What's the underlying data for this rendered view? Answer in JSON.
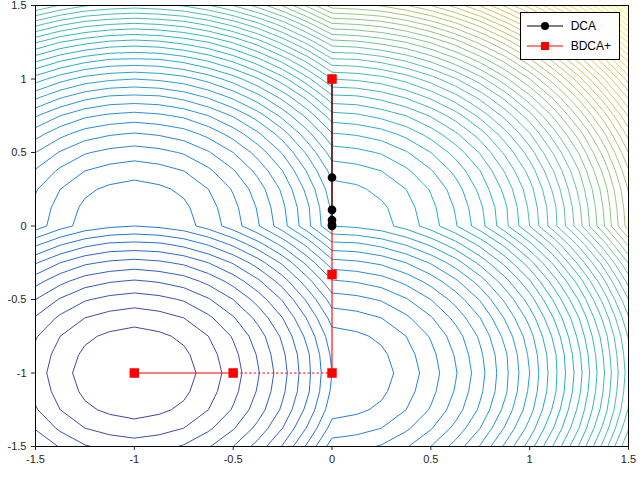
{
  "chart_data": {
    "type": "contour",
    "x": [
      -1.5,
      -1.375,
      -1.25,
      -1.125,
      -1,
      -0.875,
      -0.75,
      -0.625,
      -0.5,
      -0.375,
      -0.25,
      -0.125,
      0,
      0.125,
      0.25,
      0.375,
      0.5,
      0.625,
      0.75,
      0.875,
      1,
      1.125,
      1.25,
      1.375,
      1.5
    ],
    "y": [
      -1.5,
      -1.375,
      -1.25,
      -1.125,
      -1,
      -0.875,
      -0.75,
      -0.625,
      -0.5,
      -0.375,
      -0.25,
      -0.125,
      0,
      0.125,
      0.25,
      0.375,
      0.5,
      0.625,
      0.75,
      0.875,
      1,
      1.125,
      1.25,
      1.375,
      1.5
    ],
    "z": [
      [
        -1.5,
        -1.61,
        -1.69,
        -1.73,
        -1.75,
        -1.73,
        -1.69,
        -1.61,
        -1.5,
        -1.36,
        -1.19,
        -0.98,
        -0.75,
        -0.73,
        -0.69,
        -0.61,
        -0.5,
        -0.36,
        -0.19,
        0.02,
        0.25,
        0.52,
        0.81,
        1.14,
        1.5
      ],
      [
        -1.61,
        -1.72,
        -1.8,
        -1.84,
        -1.86,
        -1.84,
        -1.8,
        -1.72,
        -1.61,
        -1.47,
        -1.3,
        -1.09,
        -0.86,
        -0.84,
        -0.8,
        -0.72,
        -0.61,
        -0.47,
        -0.3,
        -0.09,
        0.14,
        0.41,
        0.7,
        1.03,
        1.39
      ],
      [
        -1.69,
        -1.8,
        -1.88,
        -1.92,
        -1.94,
        -1.92,
        -1.88,
        -1.8,
        -1.69,
        -1.55,
        -1.38,
        -1.17,
        -0.94,
        -0.92,
        -0.88,
        -0.8,
        -0.69,
        -0.55,
        -0.38,
        -0.17,
        0.06,
        0.33,
        0.63,
        0.95,
        1.31
      ],
      [
        -1.73,
        -1.84,
        -1.92,
        -1.97,
        -1.98,
        -1.97,
        -1.92,
        -1.84,
        -1.73,
        -1.59,
        -1.42,
        -1.22,
        -0.98,
        -0.97,
        -0.92,
        -0.84,
        -0.73,
        -0.59,
        -0.42,
        -0.22,
        0.02,
        0.28,
        0.58,
        0.91,
        1.27
      ],
      [
        -1.75,
        -1.86,
        -1.94,
        -1.98,
        -2,
        -1.98,
        -1.94,
        -1.86,
        -1.75,
        -1.61,
        -1.44,
        -1.23,
        -1,
        -0.98,
        -0.94,
        -0.86,
        -0.75,
        -0.61,
        -0.44,
        -0.23,
        0,
        0.27,
        0.56,
        0.89,
        1.25
      ],
      [
        -1.73,
        -1.84,
        -1.92,
        -1.97,
        -1.98,
        -1.97,
        -1.92,
        -1.84,
        -1.73,
        -1.59,
        -1.42,
        -1.22,
        -0.98,
        -0.97,
        -0.92,
        -0.84,
        -0.73,
        -0.59,
        -0.42,
        -0.22,
        0.02,
        0.28,
        0.58,
        0.91,
        1.27
      ],
      [
        -1.69,
        -1.8,
        -1.88,
        -1.92,
        -1.94,
        -1.92,
        -1.88,
        -1.8,
        -1.69,
        -1.55,
        -1.38,
        -1.17,
        -0.94,
        -0.92,
        -0.88,
        -0.8,
        -0.69,
        -0.55,
        -0.38,
        -0.17,
        0.06,
        0.33,
        0.63,
        0.95,
        1.31
      ],
      [
        -1.61,
        -1.72,
        -1.8,
        -1.84,
        -1.86,
        -1.84,
        -1.8,
        -1.72,
        -1.61,
        -1.47,
        -1.3,
        -1.09,
        -0.86,
        -0.84,
        -0.8,
        -0.72,
        -0.61,
        -0.47,
        -0.3,
        -0.09,
        0.14,
        0.41,
        0.7,
        1.03,
        1.39
      ],
      [
        -1.5,
        -1.61,
        -1.69,
        -1.73,
        -1.75,
        -1.73,
        -1.69,
        -1.61,
        -1.5,
        -1.36,
        -1.19,
        -0.98,
        -0.75,
        -0.73,
        -0.69,
        -0.61,
        -0.5,
        -0.36,
        -0.19,
        0.02,
        0.25,
        0.52,
        0.81,
        1.14,
        1.5
      ],
      [
        -1.36,
        -1.47,
        -1.55,
        -1.59,
        -1.61,
        -1.59,
        -1.55,
        -1.47,
        -1.36,
        -1.22,
        -1.05,
        -0.84,
        -0.61,
        -0.59,
        -0.55,
        -0.47,
        -0.36,
        -0.22,
        -0.05,
        0.16,
        0.39,
        0.66,
        0.95,
        1.28,
        1.64
      ],
      [
        -1.19,
        -1.3,
        -1.38,
        -1.42,
        -1.44,
        -1.42,
        -1.38,
        -1.3,
        -1.19,
        -1.05,
        -0.88,
        -0.67,
        -0.44,
        -0.42,
        -0.38,
        -0.3,
        -0.19,
        -0.05,
        0.13,
        0.33,
        0.56,
        0.83,
        1.13,
        1.45,
        1.81
      ],
      [
        -0.98,
        -1.09,
        -1.17,
        -1.22,
        -1.23,
        -1.22,
        -1.17,
        -1.09,
        -0.98,
        -0.84,
        -0.67,
        -0.47,
        -0.23,
        -0.22,
        -0.17,
        -0.09,
        0.02,
        0.16,
        0.33,
        0.53,
        0.77,
        1.03,
        1.33,
        1.66,
        2.02
      ],
      [
        -0.75,
        -0.86,
        -0.94,
        -0.98,
        -1,
        -0.98,
        -0.94,
        -0.86,
        -0.75,
        -0.61,
        -0.44,
        -0.23,
        0,
        0.02,
        0.06,
        0.14,
        0.25,
        0.39,
        0.56,
        0.77,
        1,
        1.27,
        1.56,
        1.89,
        2.25
      ],
      [
        -0.73,
        -0.84,
        -0.92,
        -0.97,
        -0.98,
        -0.97,
        -0.92,
        -0.84,
        -0.73,
        -0.59,
        -0.42,
        -0.22,
        0.02,
        0.03,
        0.08,
        0.16,
        0.27,
        0.41,
        0.58,
        0.78,
        1.02,
        1.28,
        1.58,
        1.91,
        2.27
      ],
      [
        -0.69,
        -0.8,
        -0.88,
        -0.92,
        -0.94,
        -0.92,
        -0.88,
        -0.8,
        -0.69,
        -0.55,
        -0.38,
        -0.17,
        0.06,
        0.08,
        0.13,
        0.2,
        0.31,
        0.45,
        0.63,
        0.83,
        1.06,
        1.33,
        1.63,
        1.95,
        2.31
      ],
      [
        -0.61,
        -0.72,
        -0.8,
        -0.84,
        -0.86,
        -0.84,
        -0.8,
        -0.72,
        -0.61,
        -0.47,
        -0.3,
        -0.09,
        0.14,
        0.16,
        0.2,
        0.28,
        0.39,
        0.53,
        0.7,
        0.91,
        1.14,
        1.41,
        1.7,
        2.03,
        2.39
      ],
      [
        -0.5,
        -0.61,
        -0.69,
        -0.73,
        -0.75,
        -0.73,
        -0.69,
        -0.61,
        -0.5,
        -0.36,
        -0.19,
        0.02,
        0.25,
        0.27,
        0.31,
        0.39,
        0.5,
        0.64,
        0.81,
        1.02,
        1.25,
        1.52,
        1.81,
        2.14,
        2.5
      ],
      [
        -0.36,
        -0.47,
        -0.55,
        -0.59,
        -0.61,
        -0.59,
        -0.55,
        -0.47,
        -0.36,
        -0.22,
        -0.05,
        0.16,
        0.39,
        0.41,
        0.45,
        0.53,
        0.64,
        0.78,
        0.95,
        1.16,
        1.39,
        1.66,
        1.95,
        2.28,
        2.64
      ],
      [
        -0.19,
        -0.3,
        -0.38,
        -0.42,
        -0.44,
        -0.42,
        -0.38,
        -0.3,
        -0.19,
        -0.05,
        0.13,
        0.33,
        0.56,
        0.58,
        0.63,
        0.7,
        0.81,
        0.95,
        1.13,
        1.33,
        1.56,
        1.83,
        2.13,
        2.45,
        2.81
      ],
      [
        0.02,
        -0.09,
        -0.17,
        -0.22,
        -0.23,
        -0.22,
        -0.17,
        -0.09,
        0.02,
        0.16,
        0.33,
        0.53,
        0.77,
        0.78,
        0.83,
        0.91,
        1.02,
        1.16,
        1.33,
        1.53,
        1.77,
        2.03,
        2.33,
        2.66,
        3.02
      ],
      [
        0.25,
        0.14,
        0.06,
        0.02,
        0,
        0.02,
        0.06,
        0.14,
        0.25,
        0.39,
        0.56,
        0.77,
        1,
        1.02,
        1.06,
        1.14,
        1.25,
        1.39,
        1.56,
        1.77,
        2,
        2.27,
        2.56,
        2.89,
        3.25
      ],
      [
        0.52,
        0.41,
        0.33,
        0.28,
        0.27,
        0.28,
        0.33,
        0.41,
        0.52,
        0.66,
        0.83,
        1.03,
        1.27,
        1.28,
        1.33,
        1.41,
        1.52,
        1.66,
        1.83,
        2.03,
        2.27,
        2.53,
        2.83,
        3.16,
        3.52
      ],
      [
        0.81,
        0.7,
        0.63,
        0.58,
        0.56,
        0.58,
        0.63,
        0.7,
        0.81,
        0.95,
        1.13,
        1.33,
        1.56,
        1.58,
        1.63,
        1.7,
        1.81,
        1.95,
        2.13,
        2.33,
        2.56,
        2.83,
        3.13,
        3.45,
        3.81
      ],
      [
        1.14,
        1.03,
        0.95,
        0.91,
        0.89,
        0.91,
        0.95,
        1.03,
        1.14,
        1.28,
        1.45,
        1.66,
        1.89,
        1.91,
        1.95,
        2.03,
        2.14,
        2.28,
        2.45,
        2.66,
        2.89,
        3.16,
        3.45,
        3.78,
        4.14
      ],
      [
        1.5,
        1.39,
        1.31,
        1.27,
        1.25,
        1.27,
        1.31,
        1.39,
        1.5,
        1.64,
        1.81,
        2.02,
        2.25,
        2.27,
        2.31,
        2.39,
        2.5,
        2.64,
        2.81,
        3.02,
        3.25,
        3.52,
        3.81,
        4.14,
        4.5
      ]
    ],
    "xlim": [
      -1.5,
      1.5
    ],
    "ylim": [
      -1.5,
      1.5
    ],
    "xticks": [
      -1.5,
      -1,
      -0.5,
      0,
      0.5,
      1,
      1.5
    ],
    "yticks": [
      -1.5,
      -1,
      -0.5,
      0,
      0.5,
      1,
      1.5
    ],
    "grid": false,
    "legend": "upper right",
    "series": [
      {
        "name": "DCA",
        "color": "#000000",
        "marker": "circle",
        "line_style": "solid",
        "x": [
          0,
          0,
          0,
          0,
          0,
          0
        ],
        "y": [
          1,
          0.33,
          0.11,
          0.04,
          0.01,
          0
        ]
      },
      {
        "name": "BDCA+",
        "color": "#ff0000",
        "marker": "square",
        "line_style": "solid",
        "x": [
          0,
          0,
          0,
          null,
          -0.5,
          -1
        ],
        "y": [
          1,
          -0.33,
          -1,
          null,
          -1,
          -1
        ]
      },
      {
        "color": "#ff0000",
        "marker": "none",
        "line_style": "dotted",
        "x": [
          0,
          -0.5
        ],
        "y": [
          -1,
          -1
        ]
      }
    ]
  }
}
